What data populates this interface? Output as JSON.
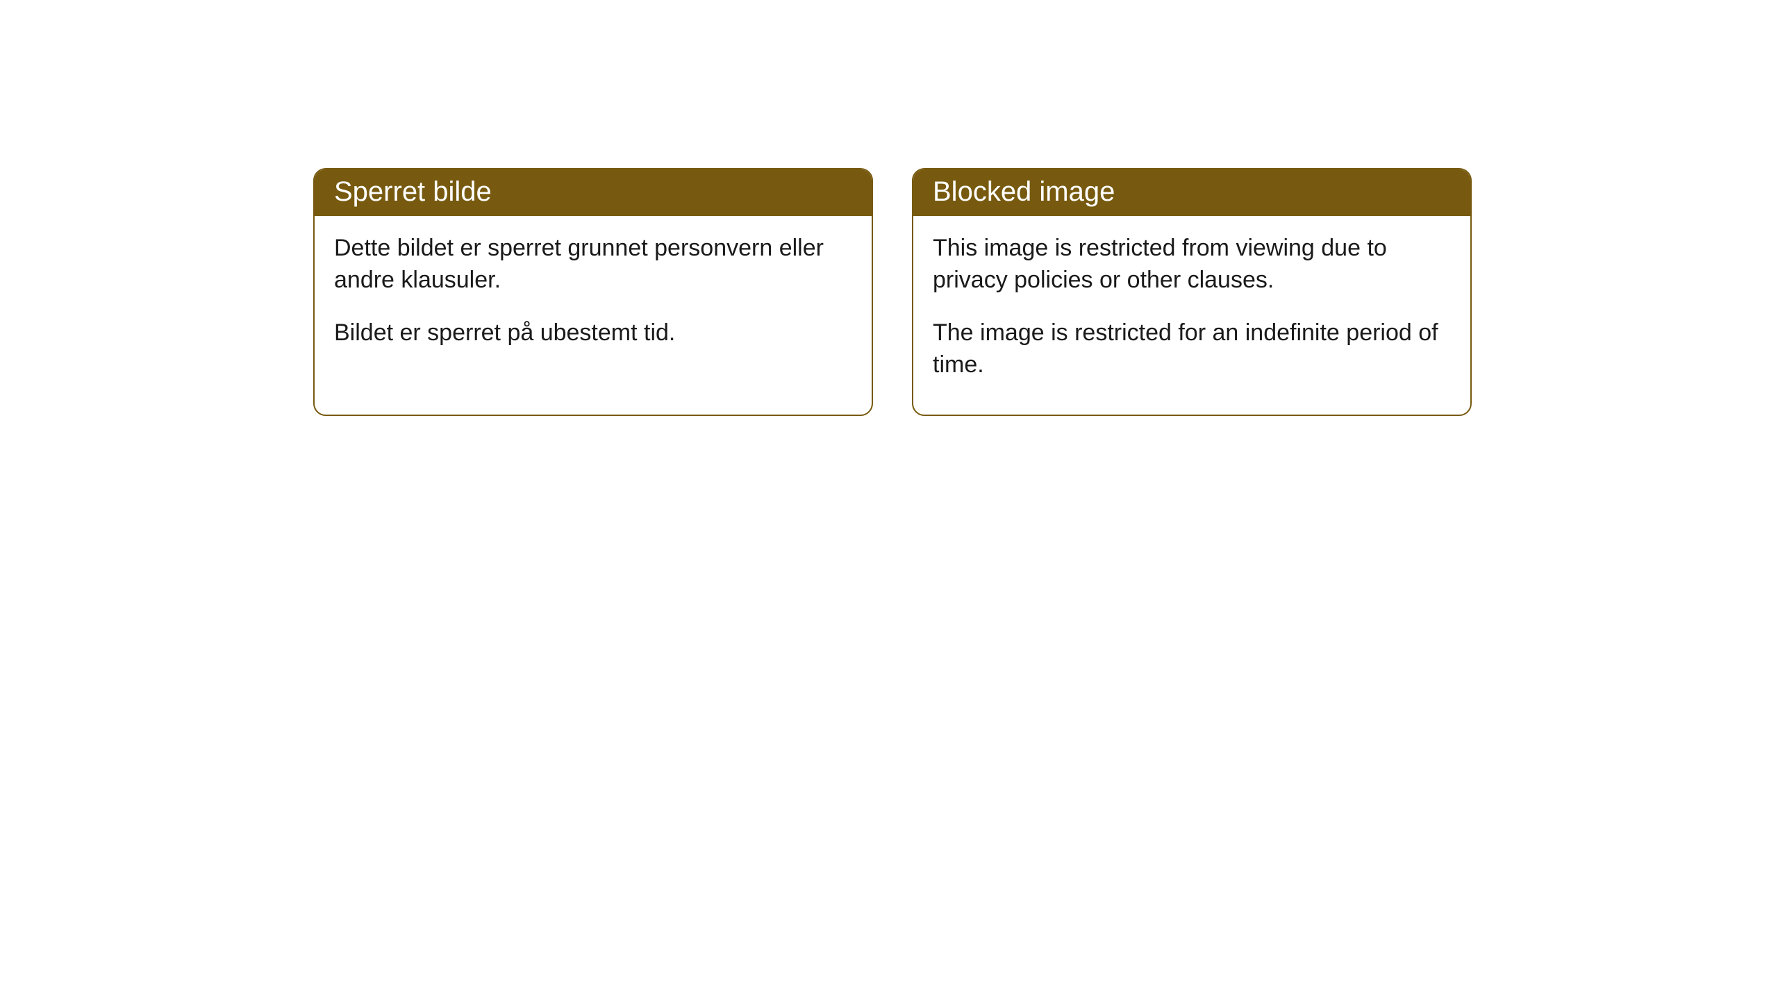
{
  "cards": [
    {
      "title": "Sperret bilde",
      "p1": "Dette bildet er sperret grunnet personvern eller andre klausuler.",
      "p2": "Bildet er sperret på ubestemt tid."
    },
    {
      "title": "Blocked image",
      "p1": "This image is restricted from viewing due to privacy policies or other clauses.",
      "p2": "The image is restricted for an indefinite period of time."
    }
  ],
  "style": {
    "header_bg": "#775a0f",
    "header_text_color": "#ffffff",
    "border_color": "#775a0f",
    "body_text_color": "#1a1a1a",
    "background_color": "#ffffff",
    "border_radius": 18,
    "title_fontsize": 40,
    "body_fontsize": 34
  }
}
